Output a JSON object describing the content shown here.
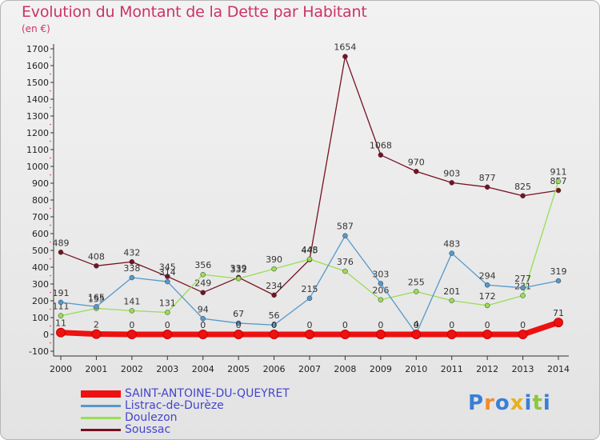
{
  "title": "Evolution du Montant de la Dette par Habitant",
  "unit": "(en €)",
  "brand": {
    "letters": [
      "P",
      "r",
      "o",
      "x",
      "i",
      "t",
      "i"
    ],
    "colors": [
      "#3a7fd5",
      "#f08c2a",
      "#3a7fd5",
      "#e8b020",
      "#3a7fd5",
      "#8cc63f",
      "#3a7fd5"
    ]
  },
  "chart_data": {
    "type": "line",
    "title": "Evolution du Montant de la Dette par Habitant",
    "ylabel": "(en €)",
    "xlabel": "",
    "x": [
      "2000",
      "2001",
      "2002",
      "2003",
      "2004",
      "2005",
      "2006",
      "2007",
      "2008",
      "2009",
      "2010",
      "2011",
      "2012",
      "2013",
      "2014"
    ],
    "ylim": [
      -100,
      1700
    ],
    "yticks": [
      -100,
      0,
      100,
      200,
      300,
      400,
      500,
      600,
      700,
      800,
      900,
      1000,
      1100,
      1200,
      1300,
      1400,
      1500,
      1600,
      1700
    ],
    "grid": false,
    "legend_position": "bottom-left",
    "series": [
      {
        "name": "SAINT-ANTOINE-DU-QUEYRET",
        "color": "#ee1111",
        "values": [
          11,
          2,
          0,
          0,
          0,
          0,
          0,
          0,
          0,
          0,
          0,
          0,
          0,
          0,
          71
        ]
      },
      {
        "name": "Listrac-de-Durèze",
        "color": "#5599cc",
        "values": [
          191,
          165,
          338,
          314,
          94,
          67,
          56,
          215,
          587,
          303,
          4,
          483,
          294,
          277,
          319
        ]
      },
      {
        "name": "Doulezon",
        "color": "#99dd55",
        "values": [
          111,
          155,
          141,
          131,
          356,
          332,
          390,
          448,
          376,
          206,
          255,
          201,
          172,
          231,
          911
        ]
      },
      {
        "name": "Soussac",
        "color": "#771122",
        "values": [
          489,
          408,
          432,
          345,
          249,
          339,
          234,
          445,
          1654,
          1068,
          970,
          903,
          877,
          825,
          857
        ]
      }
    ]
  }
}
